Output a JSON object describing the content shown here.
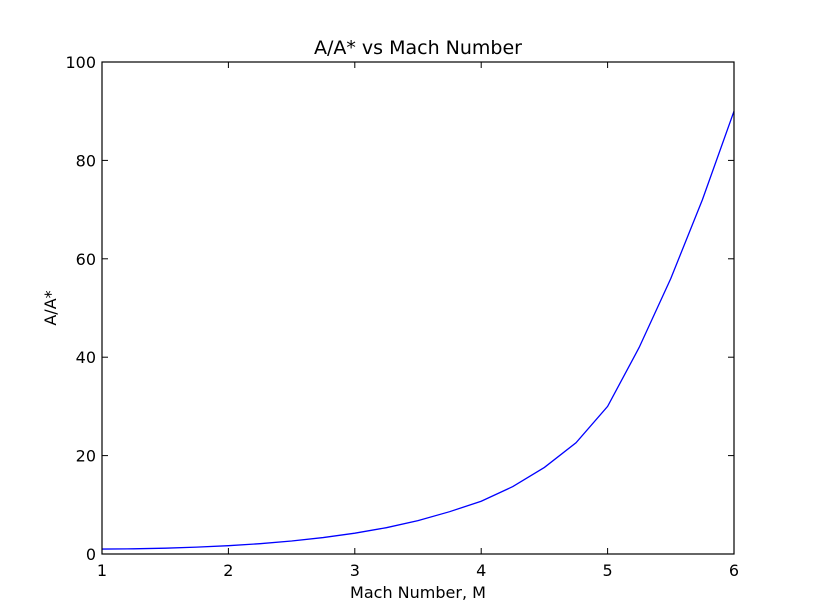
{
  "chart_data": {
    "type": "line",
    "title": "A/A* vs Mach Number",
    "xlabel": "Mach Number, M",
    "ylabel": "A/A*",
    "xlim": [
      1,
      6
    ],
    "ylim": [
      0,
      100
    ],
    "xticks": [
      1,
      2,
      3,
      4,
      5,
      6
    ],
    "yticks": [
      0,
      20,
      40,
      60,
      80,
      100
    ],
    "grid": false,
    "series": [
      {
        "color": "#0000ff",
        "x": [
          1.0,
          1.25,
          1.5,
          1.75,
          2.0,
          2.25,
          2.5,
          2.75,
          3.0,
          3.25,
          3.5,
          3.75,
          4.0,
          4.25,
          4.5,
          4.75,
          5.0,
          5.25,
          5.5,
          5.75,
          6.0
        ],
        "y": [
          1.0,
          1.05,
          1.18,
          1.39,
          1.69,
          2.1,
          2.64,
          3.34,
          4.23,
          5.35,
          6.79,
          8.6,
          10.72,
          13.7,
          17.6,
          22.6,
          30.0,
          42.0,
          56.0,
          72.0,
          90.0
        ]
      }
    ]
  }
}
